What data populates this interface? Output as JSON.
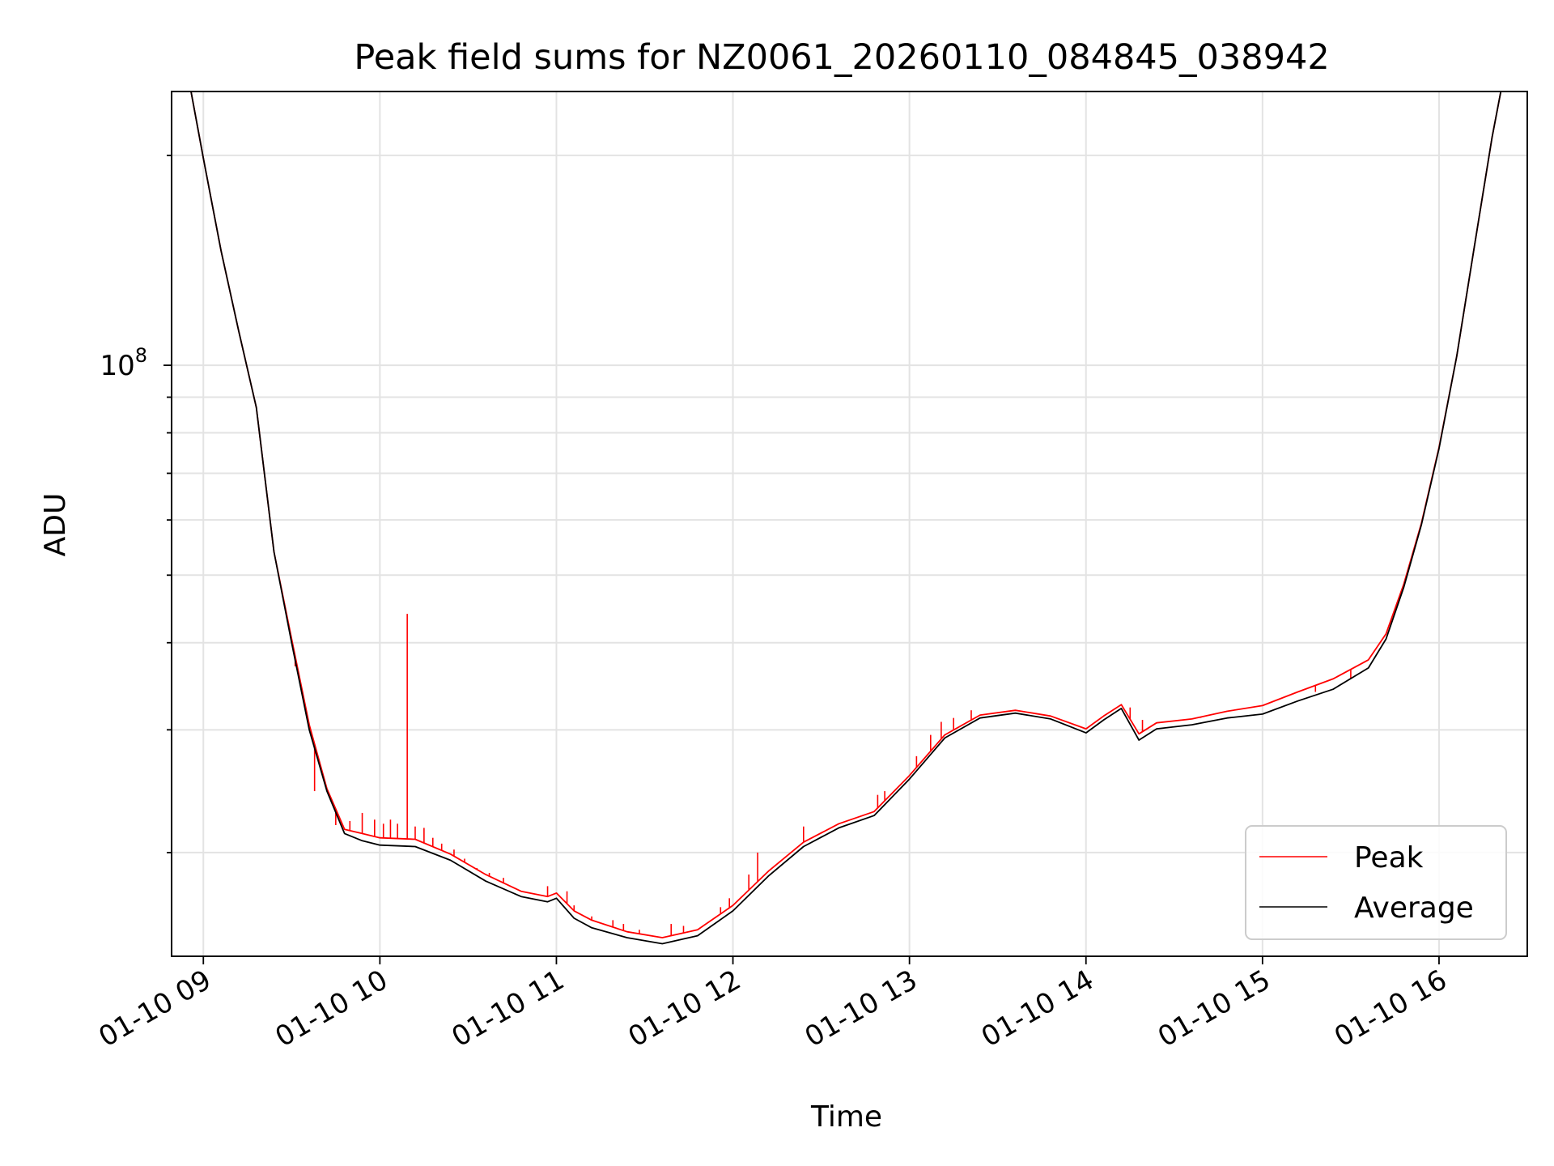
{
  "chart_data": {
    "type": "line",
    "title": "Peak field sums for NZ0061_20260110_084845_038942",
    "xlabel": "Time",
    "ylabel": "ADU",
    "x_ticks": [
      "01-10 09",
      "01-10 10",
      "01-10 11",
      "01-10 12",
      "01-10 13",
      "01-10 14",
      "01-10 15",
      "01-10 16"
    ],
    "x_tick_values": [
      9,
      10,
      11,
      12,
      13,
      14,
      15,
      16
    ],
    "y_tick_label": {
      "base": "10",
      "exponent": "8",
      "value": 100000000
    },
    "y_scale": "log",
    "xlim": [
      8.82,
      16.5
    ],
    "ylim": [
      14200000,
      247000000
    ],
    "grid": true,
    "legend_position": "lower right",
    "colors": {
      "peak": "#ff0000",
      "average": "#000000"
    },
    "series": [
      {
        "name": "Average",
        "x": [
          8.82,
          8.93,
          9.0,
          9.1,
          9.2,
          9.3,
          9.4,
          9.5,
          9.6,
          9.7,
          9.8,
          9.9,
          10.0,
          10.2,
          10.4,
          10.6,
          10.8,
          10.95,
          11.0,
          11.1,
          11.2,
          11.4,
          11.6,
          11.8,
          12.0,
          12.2,
          12.4,
          12.6,
          12.8,
          13.0,
          13.2,
          13.4,
          13.6,
          13.8,
          14.0,
          14.1,
          14.2,
          14.3,
          14.4,
          14.6,
          14.8,
          15.0,
          15.2,
          15.4,
          15.6,
          15.7,
          15.8,
          15.9,
          16.0,
          16.1,
          16.2,
          16.3,
          16.35,
          16.5
        ],
        "values": [
          247000000,
          247000000,
          198000000,
          146000000,
          112000000,
          87000000,
          54000000,
          40000000,
          30000000,
          24500000,
          21300000,
          20800000,
          20500000,
          20400000,
          19500000,
          18200000,
          17300000,
          17000000,
          17200000,
          16100000,
          15600000,
          15100000,
          14800000,
          15200000,
          16500000,
          18500000,
          20400000,
          21700000,
          22600000,
          25500000,
          29200000,
          31200000,
          31700000,
          31100000,
          29700000,
          31000000,
          32200000,
          29000000,
          30100000,
          30500000,
          31200000,
          31600000,
          33000000,
          34300000,
          36800000,
          40500000,
          48000000,
          59000000,
          76000000,
          103000000,
          148000000,
          212000000,
          247000000,
          247000000
        ]
      },
      {
        "name": "Peak",
        "x": [
          8.82,
          8.93,
          9.0,
          9.1,
          9.2,
          9.3,
          9.4,
          9.5,
          9.6,
          9.7,
          9.8,
          9.9,
          10.0,
          10.2,
          10.4,
          10.6,
          10.8,
          10.95,
          11.0,
          11.1,
          11.2,
          11.4,
          11.6,
          11.8,
          12.0,
          12.2,
          12.4,
          12.6,
          12.8,
          13.0,
          13.2,
          13.4,
          13.6,
          13.8,
          14.0,
          14.1,
          14.2,
          14.3,
          14.4,
          14.6,
          14.8,
          15.0,
          15.2,
          15.4,
          15.6,
          15.7,
          15.8,
          15.9,
          16.0,
          16.1,
          16.2,
          16.3,
          16.35,
          16.5
        ],
        "values": [
          247000000,
          247000000,
          198000000,
          146000000,
          112000000,
          87000000,
          54000000,
          40500000,
          30500000,
          24700000,
          21600000,
          21300000,
          21000000,
          20900000,
          19900000,
          18600000,
          17600000,
          17300000,
          17500000,
          16500000,
          16000000,
          15400000,
          15100000,
          15500000,
          16800000,
          18800000,
          20700000,
          22000000,
          22900000,
          25800000,
          29500000,
          31500000,
          32000000,
          31400000,
          30100000,
          31400000,
          32600000,
          29600000,
          30700000,
          31100000,
          31900000,
          32500000,
          34000000,
          35500000,
          37800000,
          41200000,
          48500000,
          59300000,
          76300000,
          103000000,
          148000000,
          212000000,
          247000000,
          247000000
        ]
      }
    ],
    "spikes": {
      "x": [
        9.52,
        9.63,
        9.75,
        9.83,
        9.9,
        9.97,
        10.02,
        10.06,
        10.1,
        10.155,
        10.2,
        10.25,
        10.3,
        10.35,
        10.42,
        10.48,
        10.55,
        10.62,
        10.7,
        10.74,
        10.95,
        11.06,
        11.1,
        11.2,
        11.32,
        11.38,
        11.47,
        11.52,
        11.65,
        11.72,
        11.93,
        11.98,
        12.09,
        12.14,
        12.4,
        12.82,
        12.86,
        13.04,
        13.12,
        13.18,
        13.25,
        13.35,
        14.25,
        14.32,
        14.48,
        14.55,
        14.65,
        15.3,
        15.5
      ],
      "values": [
        37000000,
        24500000,
        21900000,
        22200000,
        22800000,
        22300000,
        22000000,
        22300000,
        22000000,
        44000000,
        21800000,
        21700000,
        21000000,
        20600000,
        20200000,
        19600000,
        19000000,
        18700000,
        18400000,
        17900000,
        17900000,
        17600000,
        16800000,
        16200000,
        16000000,
        15800000,
        15500000,
        15200000,
        15800000,
        15700000,
        16700000,
        17200000,
        18600000,
        20000000,
        21800000,
        24200000,
        24500000,
        27500000,
        29500000,
        30800000,
        31200000,
        32000000,
        32300000,
        31000000,
        30800000,
        31000000,
        31200000,
        34000000,
        35600000
      ]
    }
  }
}
